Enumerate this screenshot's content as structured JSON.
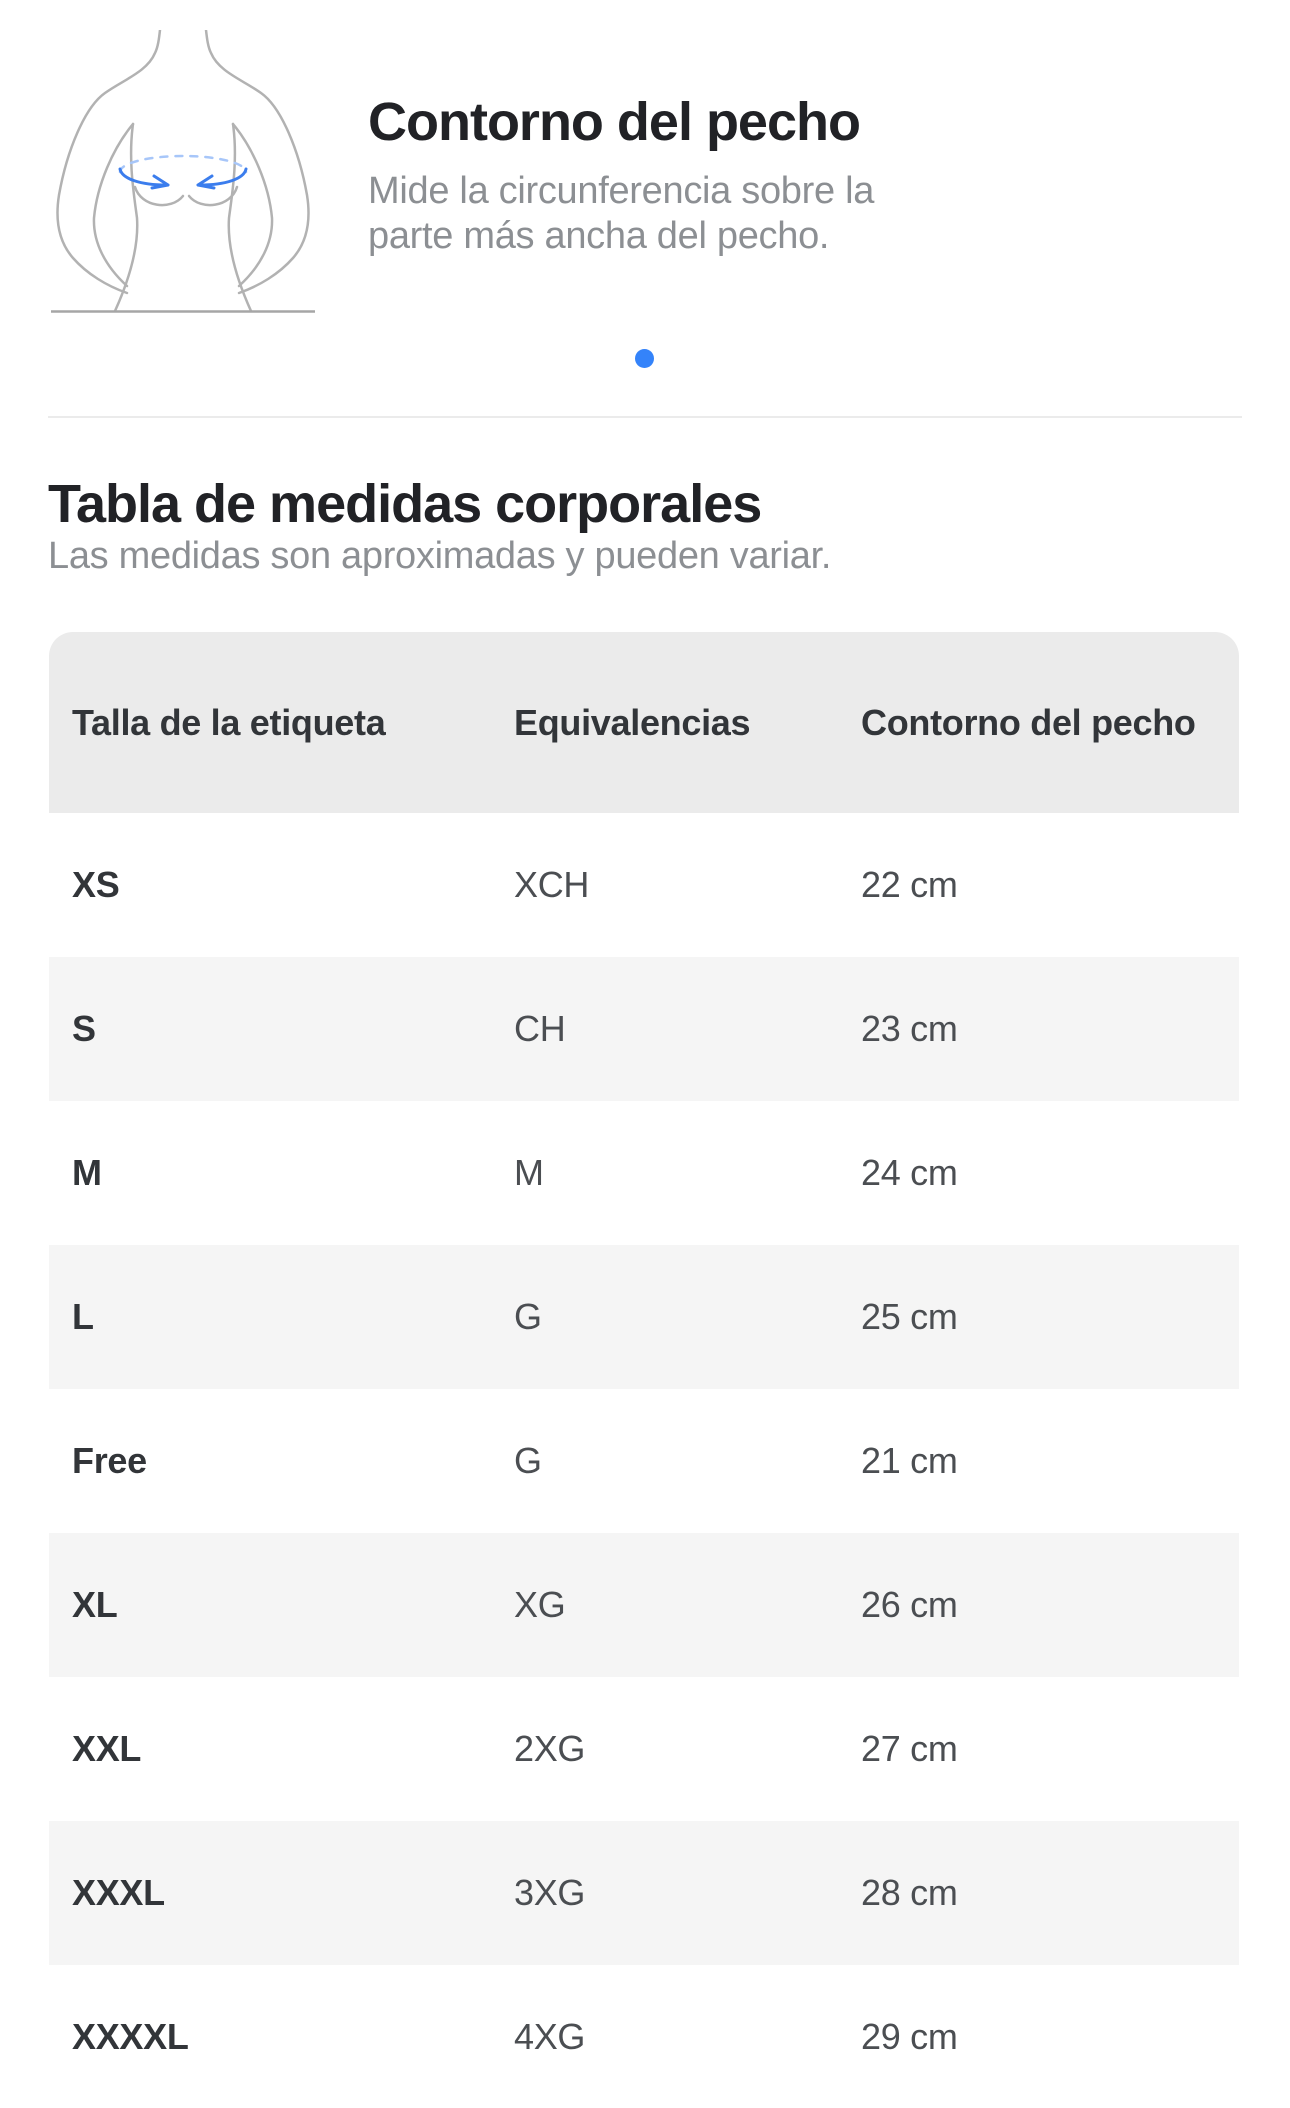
{
  "measure_slide": {
    "title": "Contorno del pecho",
    "description_line1": "Mide la circunferencia sobre la",
    "description_line2": "parte más ancha del pecho.",
    "illustration": "female-torso-chest-measure-icon"
  },
  "carousel": {
    "active_dot_color": "#3483fa"
  },
  "section": {
    "title": "Tabla de medidas corporales",
    "subtitle": "Las medidas son aproximadas y pueden variar."
  },
  "table": {
    "columns": [
      "Talla de la etiqueta",
      "Equivalencias",
      "Contorno del pecho"
    ],
    "rows": [
      {
        "label": "XS",
        "equivalence": "XCH",
        "chest": "22 cm"
      },
      {
        "label": "S",
        "equivalence": "CH",
        "chest": "23 cm"
      },
      {
        "label": "M",
        "equivalence": "M",
        "chest": "24 cm"
      },
      {
        "label": "L",
        "equivalence": "G",
        "chest": "25 cm"
      },
      {
        "label": "Free",
        "equivalence": "G",
        "chest": "21 cm"
      },
      {
        "label": "XL",
        "equivalence": "XG",
        "chest": "26 cm"
      },
      {
        "label": "XXL",
        "equivalence": "2XG",
        "chest": "27 cm"
      },
      {
        "label": "XXXL",
        "equivalence": "3XG",
        "chest": "28 cm"
      },
      {
        "label": "XXXXL",
        "equivalence": "4XG",
        "chest": "29 cm"
      }
    ]
  },
  "colors": {
    "accent_blue": "#3483fa",
    "header_bg": "#ebebeb",
    "zebra_bg": "#f5f5f5",
    "text_dark": "#323539",
    "text_gray": "#8c8f93"
  }
}
